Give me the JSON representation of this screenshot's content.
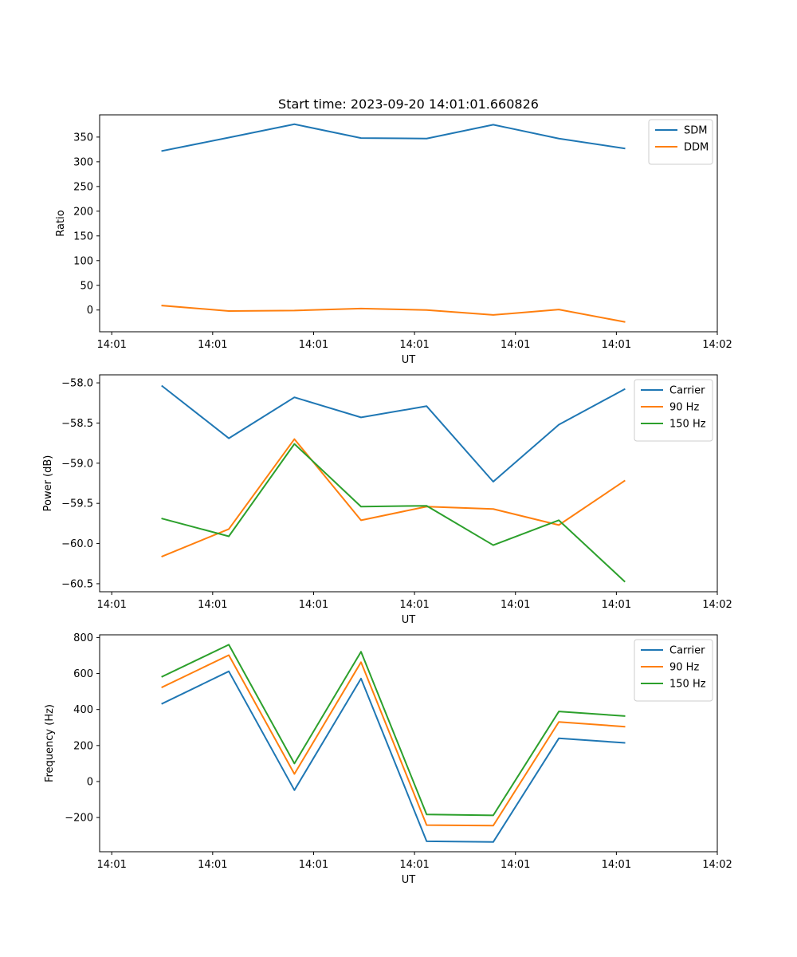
{
  "title": "Start time: 2023-09-20 14:01:01.660826",
  "colors": {
    "blue": "#1f77b4",
    "orange": "#ff7f0e",
    "green": "#2ca02c"
  },
  "x_tick_labels": [
    "14:01",
    "14:01",
    "14:01",
    "14:01",
    "14:01",
    "14:01",
    "14:02"
  ],
  "chart_data": [
    {
      "type": "line",
      "title": "Start time: 2023-09-20 14:01:01.660826",
      "xlabel": "UT",
      "ylabel": "Ratio",
      "x": [
        0.5,
        1.16,
        1.81,
        2.47,
        3.12,
        3.78,
        4.43,
        5.08
      ],
      "xlim": [
        -0.12,
        6.0
      ],
      "ylim": [
        -44,
        395
      ],
      "yticks": [
        0,
        50,
        100,
        150,
        200,
        250,
        300,
        350
      ],
      "ytick_labels": [
        "0",
        "50",
        "100",
        "150",
        "200",
        "250",
        "300",
        "350"
      ],
      "legend": "top-right",
      "series": [
        {
          "name": "SDM",
          "color": "#1f77b4",
          "values": [
            322,
            349,
            376,
            348,
            347,
            375,
            347,
            327
          ]
        },
        {
          "name": "DDM",
          "color": "#ff7f0e",
          "values": [
            9,
            -2,
            -1,
            3,
            0,
            -10,
            1,
            -24
          ]
        }
      ]
    },
    {
      "type": "line",
      "title": "",
      "xlabel": "UT",
      "ylabel": "Power (dB)",
      "x": [
        0.5,
        1.16,
        1.81,
        2.47,
        3.12,
        3.78,
        4.43,
        5.08
      ],
      "xlim": [
        -0.12,
        6.0
      ],
      "ylim": [
        -60.6,
        -57.9
      ],
      "yticks": [
        -60.5,
        -60.0,
        -59.5,
        -59.0,
        -58.5,
        -58.0
      ],
      "ytick_labels": [
        "−60.5",
        "−60.0",
        "−59.5",
        "−59.0",
        "−58.5",
        "−58.0"
      ],
      "legend": "top-right",
      "series": [
        {
          "name": "Carrier",
          "color": "#1f77b4",
          "values": [
            -58.04,
            -58.69,
            -58.18,
            -58.43,
            -58.29,
            -59.23,
            -58.52,
            -58.08
          ]
        },
        {
          "name": "90 Hz",
          "color": "#ff7f0e",
          "values": [
            -60.16,
            -59.82,
            -58.7,
            -59.71,
            -59.54,
            -59.57,
            -59.77,
            -59.22
          ]
        },
        {
          "name": "150 Hz",
          "color": "#2ca02c",
          "values": [
            -59.69,
            -59.91,
            -58.76,
            -59.54,
            -59.53,
            -60.02,
            -59.71,
            -60.47
          ]
        }
      ]
    },
    {
      "type": "line",
      "title": "",
      "xlabel": "UT",
      "ylabel": "Frequency (Hz)",
      "x": [
        0.5,
        1.16,
        1.81,
        2.47,
        3.12,
        3.78,
        4.43,
        5.08
      ],
      "xlim": [
        -0.12,
        6.0
      ],
      "ylim": [
        -390,
        815
      ],
      "yticks": [
        -200,
        0,
        200,
        400,
        600,
        800
      ],
      "ytick_labels": [
        "−200",
        "0",
        "200",
        "400",
        "600",
        "800"
      ],
      "legend": "top-right",
      "series": [
        {
          "name": "Carrier",
          "color": "#1f77b4",
          "values": [
            433,
            612,
            -48,
            572,
            -332,
            -336,
            240,
            215
          ]
        },
        {
          "name": "90 Hz",
          "color": "#ff7f0e",
          "values": [
            524,
            702,
            42,
            663,
            -242,
            -245,
            331,
            305
          ]
        },
        {
          "name": "150 Hz",
          "color": "#2ca02c",
          "values": [
            583,
            760,
            100,
            721,
            -183,
            -188,
            389,
            364
          ]
        }
      ]
    }
  ]
}
